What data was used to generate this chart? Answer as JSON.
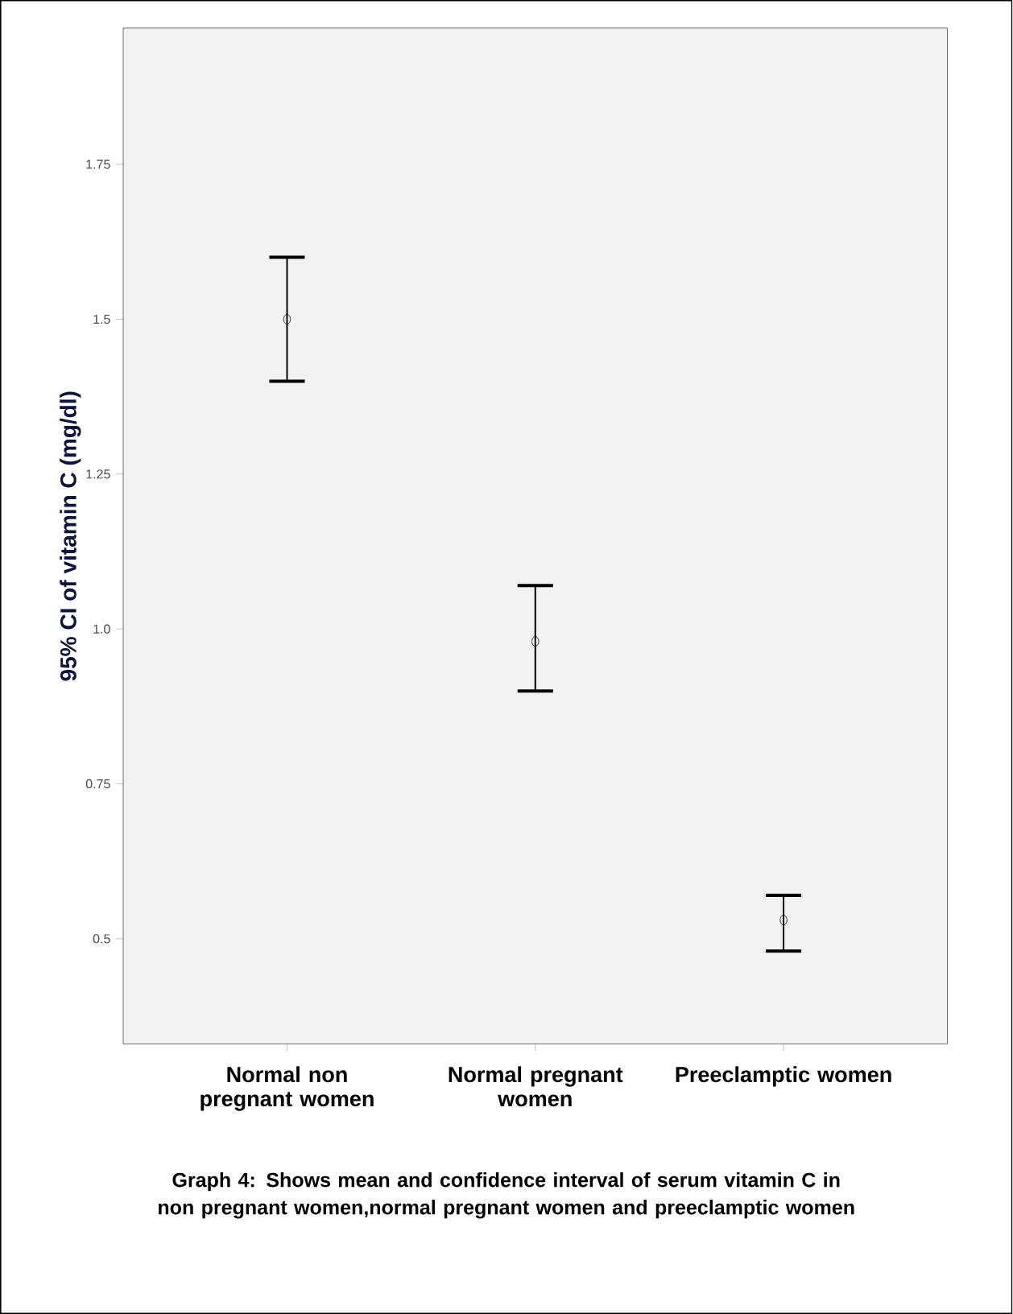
{
  "chart_data": {
    "type": "scatter",
    "ylabel": "95% CI of vitamin C (mg/dl)",
    "categories": [
      "Normal non pregnant women",
      "Normal pregnant women",
      "Preeclamptic women"
    ],
    "values": [
      1.5,
      0.98,
      0.53
    ],
    "errors": [
      [
        1.4,
        1.6
      ],
      [
        0.9,
        1.07
      ],
      [
        0.48,
        0.57
      ]
    ],
    "color": "#000000",
    "marker": "circle",
    "ylim": [
      0.33,
      1.97
    ],
    "yticks": [
      0.5,
      {
        "value": 0.75,
        "label": "0.75"
      },
      {
        "value": 1.0,
        "label": "1.0"
      },
      1.25,
      1.5,
      1.75
    ],
    "annotations": [
      "Graph 4: Shows mean and confidence interval of serum vitamin C in non pregnant women,normal pregnant women and preeclamptic women"
    ]
  }
}
